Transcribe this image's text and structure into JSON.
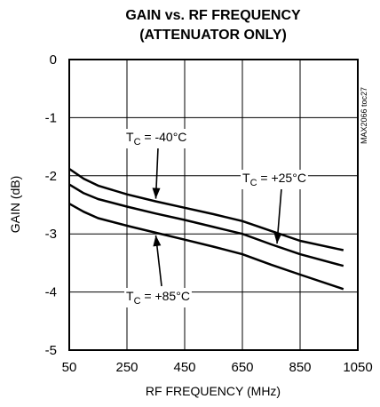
{
  "chart_data": {
    "type": "line",
    "title": "GAIN vs. RF FREQUENCY",
    "subtitle": "(ATTENUATOR ONLY)",
    "xlabel": "RF FREQUENCY (MHz)",
    "ylabel": "GAIN (dB)",
    "xlim": [
      50,
      1050
    ],
    "ylim": [
      -5,
      0
    ],
    "x_ticks": [
      50,
      250,
      450,
      650,
      850,
      1050
    ],
    "y_ticks": [
      0,
      -1,
      -2,
      -3,
      -4,
      -5
    ],
    "grid": true,
    "side_label": "MAX2066 toc27",
    "x": [
      50,
      100,
      150,
      250,
      350,
      450,
      550,
      650,
      750,
      850,
      1000
    ],
    "series": [
      {
        "name": "TC = -40°C",
        "values": [
          -1.88,
          -2.05,
          -2.17,
          -2.32,
          -2.44,
          -2.55,
          -2.66,
          -2.78,
          -2.95,
          -3.12,
          -3.28
        ]
      },
      {
        "name": "TC = +25°C",
        "values": [
          -2.15,
          -2.3,
          -2.4,
          -2.53,
          -2.65,
          -2.76,
          -2.88,
          -3.0,
          -3.18,
          -3.35,
          -3.55
        ]
      },
      {
        "name": "TC = +85°C",
        "values": [
          -2.48,
          -2.62,
          -2.73,
          -2.86,
          -2.98,
          -3.1,
          -3.22,
          -3.35,
          -3.53,
          -3.7,
          -3.95
        ]
      }
    ],
    "annotations": [
      {
        "label_main": "T",
        "label_sub": "C",
        "label_rest": " = -40°C",
        "series_index": 0,
        "at_x": 350
      },
      {
        "label_main": "T",
        "label_sub": "C",
        "label_rest": " = +25°C",
        "series_index": 1,
        "at_x": 770
      },
      {
        "label_main": "T",
        "label_sub": "C",
        "label_rest": " = +85°C",
        "series_index": 2,
        "at_x": 350
      }
    ]
  }
}
